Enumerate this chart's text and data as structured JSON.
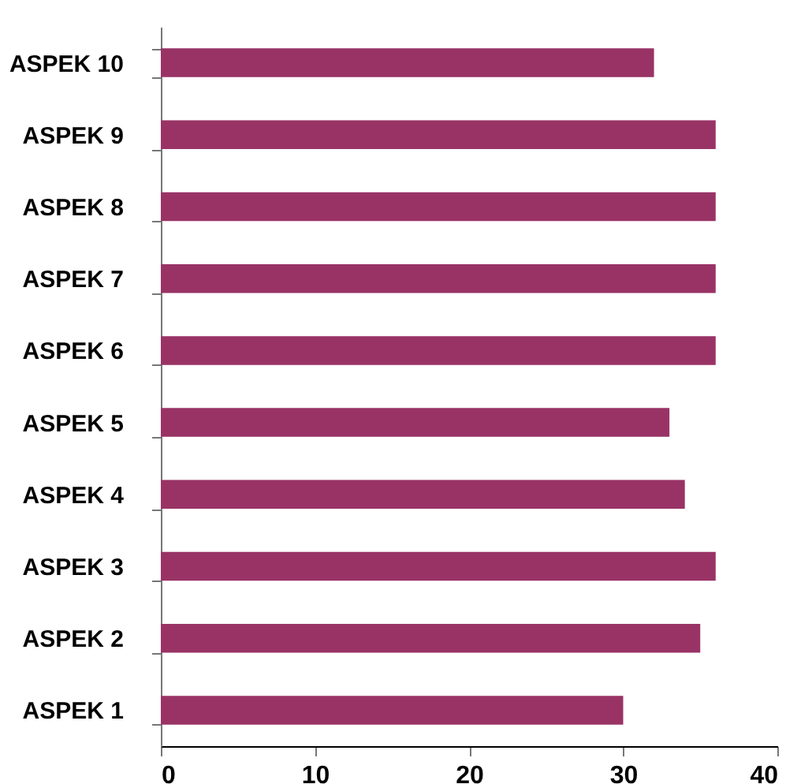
{
  "chart_data": {
    "type": "bar",
    "orientation": "horizontal",
    "categories": [
      "ASPEK 10",
      "ASPEK 9",
      "ASPEK 8",
      "ASPEK 7",
      "ASPEK 6",
      "ASPEK 5",
      "ASPEK 4",
      "ASPEK 3",
      "ASPEK 2",
      "ASPEK 1"
    ],
    "values": [
      32,
      36,
      36,
      36,
      36,
      33,
      34,
      36,
      35,
      30
    ],
    "color": "#993366",
    "xlim": [
      0,
      40
    ],
    "xticks": [
      0,
      10,
      20,
      30,
      40
    ],
    "grid": false
  }
}
